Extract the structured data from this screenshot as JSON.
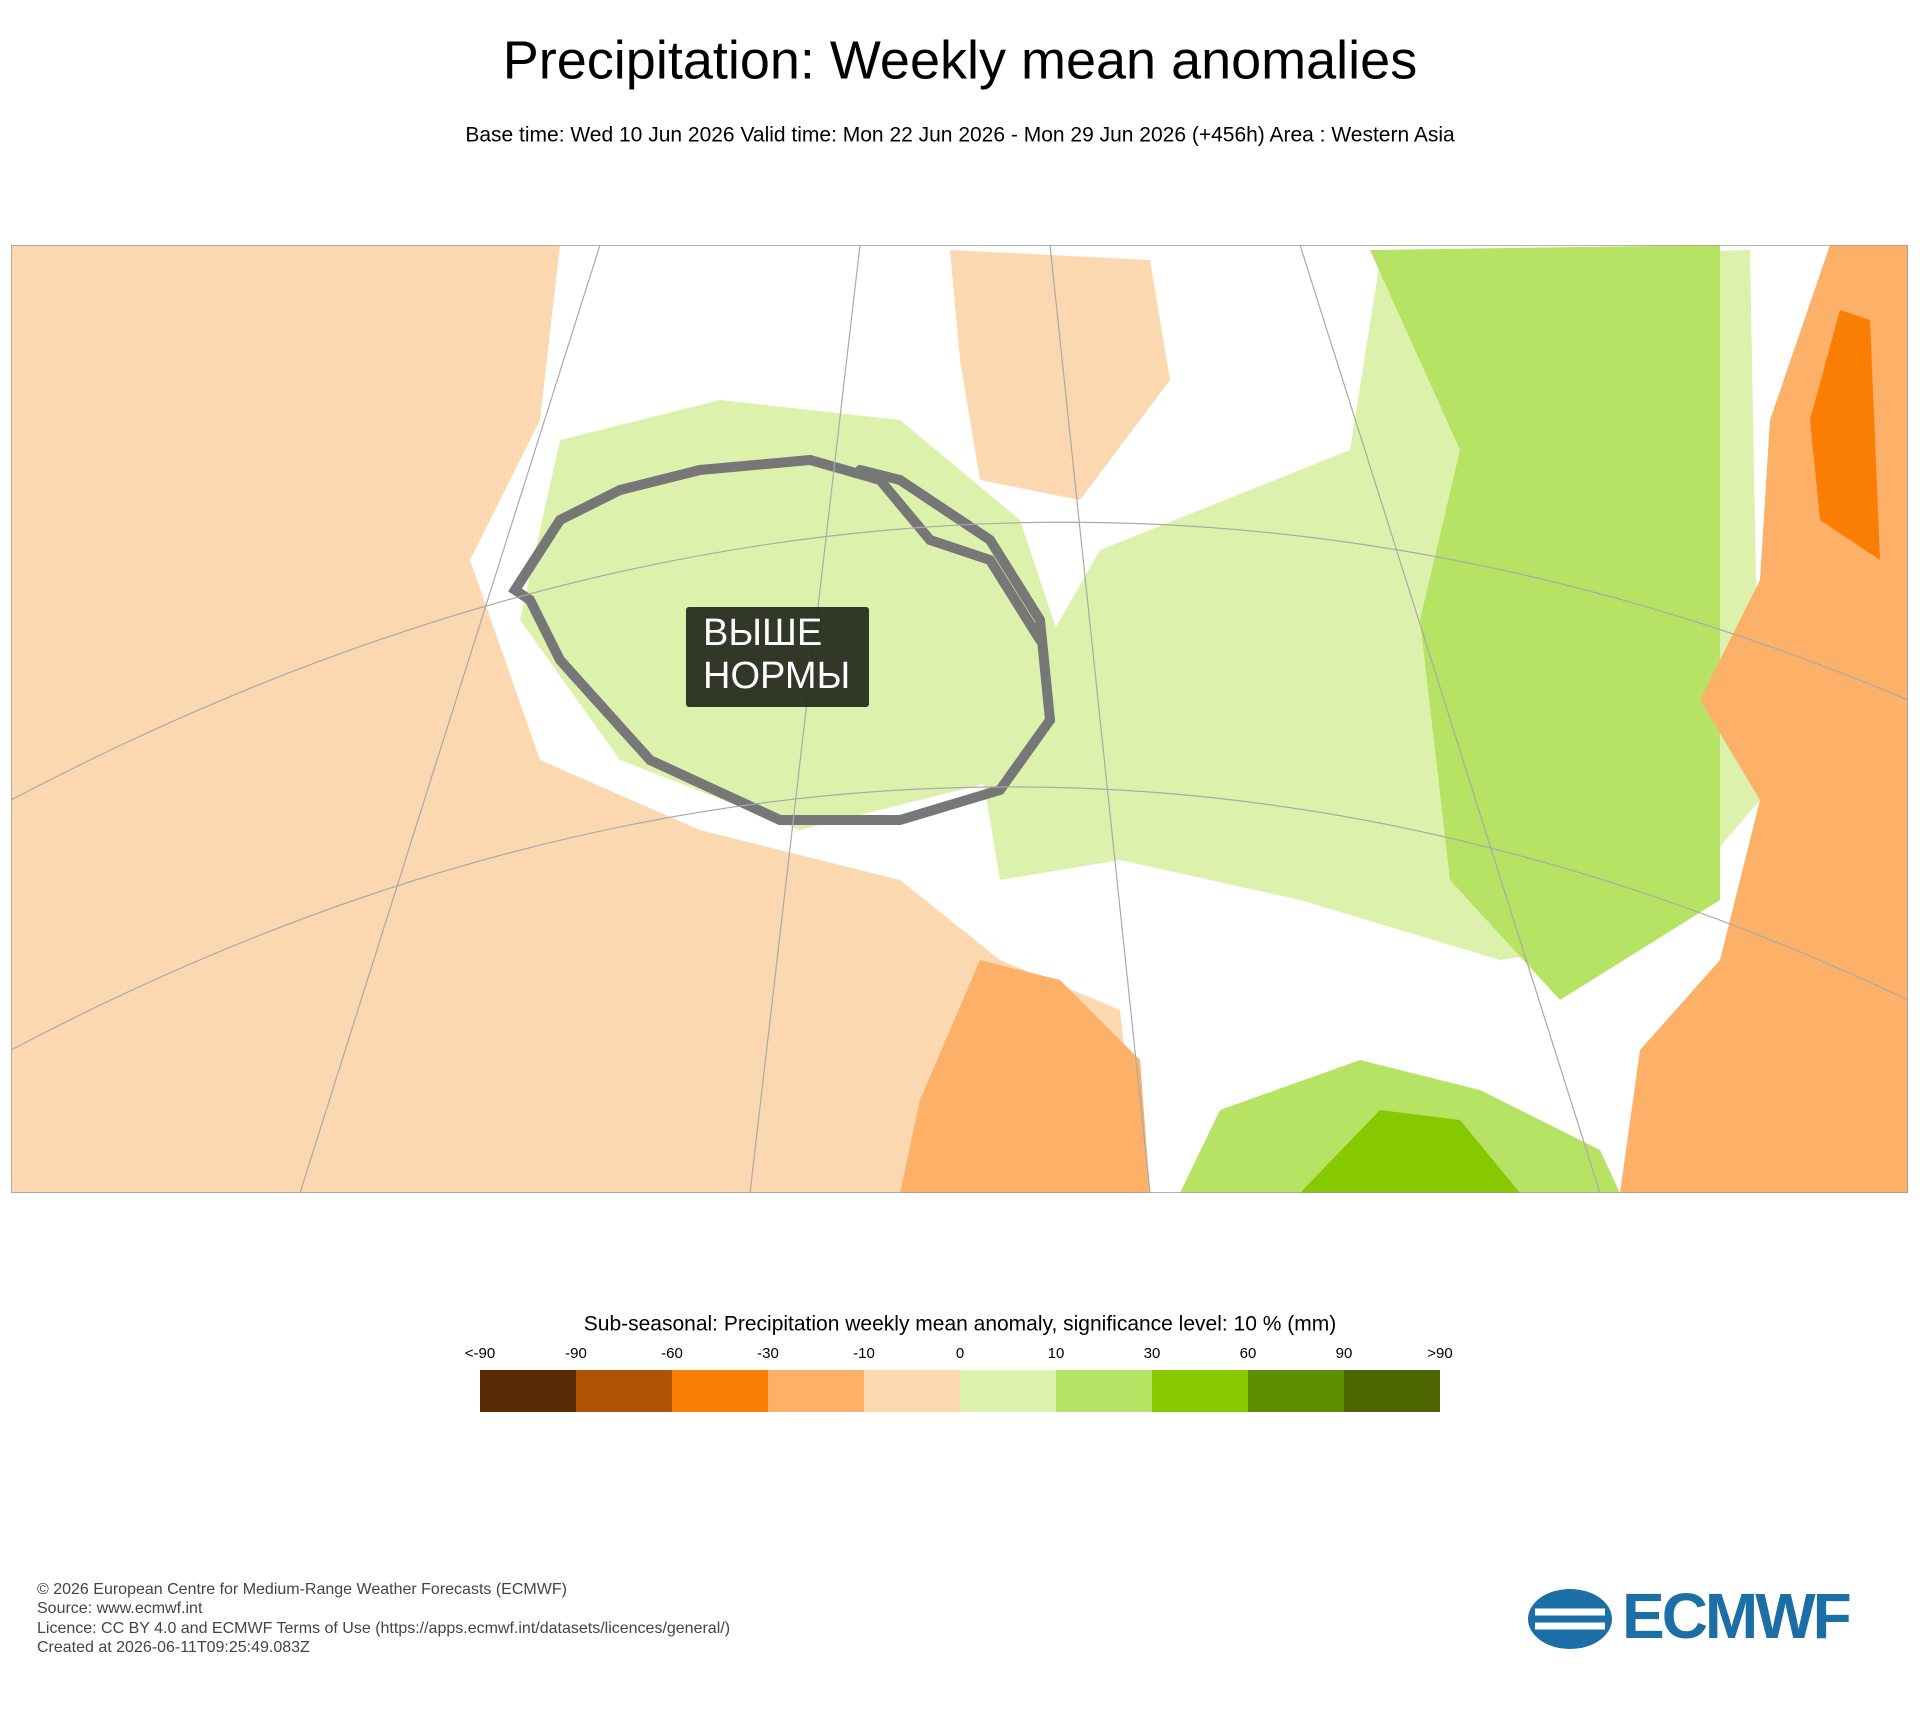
{
  "header": {
    "title": "Precipitation: Weekly mean anomalies",
    "subtitle": "Base time: Wed 10 Jun 2026 Valid time: Mon 22 Jun 2026 - Mon 29 Jun 2026 (+456h) Area : Western Asia"
  },
  "map": {
    "annotation": [
      "ВЫШЕ",
      "НОРМЫ"
    ]
  },
  "legend": {
    "title": "Sub-seasonal: Precipitation weekly mean anomaly, significance level: 10 % (mm)",
    "labels": [
      "<-90",
      "-90",
      "-60",
      "-30",
      "-10",
      "0",
      "10",
      "30",
      "60",
      "90",
      ">90"
    ],
    "colors": [
      "#5a2a05",
      "#ad5303",
      "#fb7e04",
      "#fcb068",
      "#fcd8b0",
      "#dcf2ac",
      "#b6e364",
      "#86c900",
      "#5e8e00",
      "#4c6500"
    ]
  },
  "footer": {
    "lines": [
      "© 2026 European Centre for Medium-Range Weather Forecasts (ECMWF)",
      "Source: www.ecmwf.int",
      "Licence: CC BY 4.0 and ECMWF Terms of Use (https://apps.ecmwf.int/datasets/licences/general/)",
      "Created at 2026-06-11T09:25:49.083Z"
    ],
    "logo": "ECMWF"
  }
}
